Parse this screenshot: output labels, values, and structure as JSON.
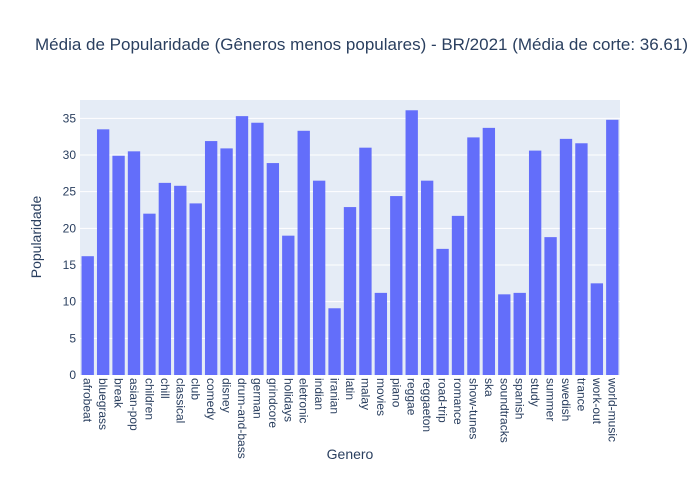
{
  "chart_data": {
    "type": "bar",
    "title": "Média de Popularidade (Gêneros menos populares) - BR/2021 (Média de corte: 36.61)",
    "xlabel": "Genero",
    "ylabel": "Popularidade",
    "ylim": [
      0,
      37.5
    ],
    "yticks": [
      0,
      5,
      10,
      15,
      20,
      25,
      30,
      35
    ],
    "grid": true,
    "bar_color": "#636efa",
    "plot_bg": "#e5ecf6",
    "categories": [
      "afrobeat",
      "bluegrass",
      "break",
      "asian-pop",
      "children",
      "chill",
      "classical",
      "club",
      "comedy",
      "disney",
      "drum-and-bass",
      "german",
      "grindcore",
      "holidays",
      "eletronic",
      "indian",
      "iranian",
      "latin",
      "malay",
      "movies",
      "piano",
      "reggae",
      "reggaeton",
      "road-trip",
      "romance",
      "show-tunes",
      "ska",
      "soundtracks",
      "spanish",
      "study",
      "summer",
      "swedish",
      "trance",
      "work-out",
      "world-music"
    ],
    "values": [
      16.2,
      33.5,
      29.9,
      30.5,
      22.0,
      26.2,
      25.8,
      23.4,
      31.9,
      30.9,
      35.3,
      34.4,
      28.9,
      19.0,
      33.3,
      26.5,
      9.1,
      22.9,
      31.0,
      11.2,
      24.4,
      36.1,
      26.5,
      17.2,
      21.7,
      32.4,
      33.7,
      11.0,
      11.2,
      30.6,
      18.8,
      32.2,
      31.6,
      12.5,
      34.8
    ]
  }
}
